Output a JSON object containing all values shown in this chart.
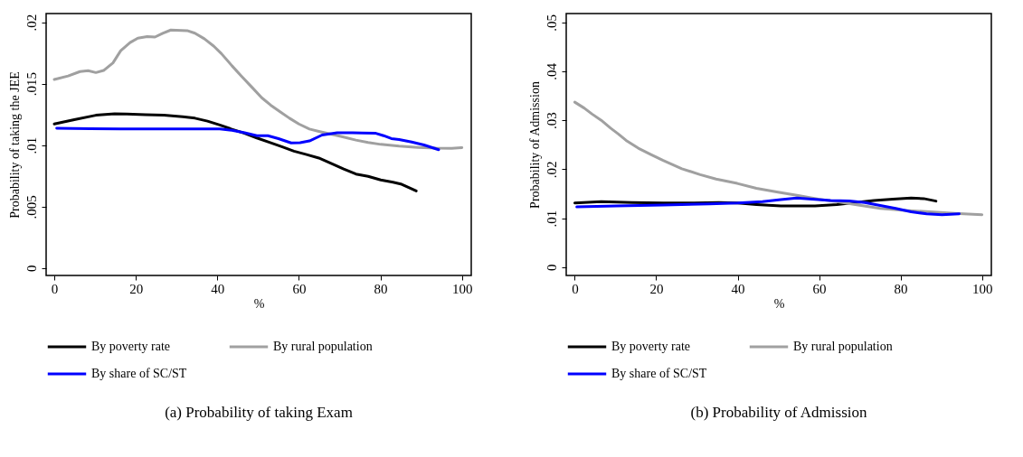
{
  "chart_data": [
    {
      "type": "line",
      "title": "(a) Probability of taking Exam",
      "xlabel": "%",
      "ylabel": "Probability of taking the JEE",
      "xlim": [
        -2,
        102.3
      ],
      "ylim": [
        -0.0006,
        0.0207
      ],
      "xticks": [
        0,
        20,
        40,
        60,
        80,
        100
      ],
      "yticks": [
        0,
        {
          "value": 0.005,
          "label": ".005"
        },
        {
          "value": 0.01,
          "label": ".01"
        },
        {
          "value": 0.015,
          "label": ".015"
        },
        {
          "value": 0.02,
          "label": ".02"
        }
      ],
      "legend": "bottom",
      "series": [
        {
          "name": "By poverty rate",
          "color": "#000000",
          "x": [
            0,
            4.9,
            10.2,
            14.8,
            17.8,
            22.4,
            26.9,
            31.5,
            34.5,
            37.6,
            40.6,
            43.6,
            46.7,
            49.7,
            52.8,
            55.8,
            58.8,
            61.9,
            64.9,
            67.9,
            71,
            74,
            77,
            80.1,
            83.1,
            85,
            88.8
          ],
          "values": [
            0.01172,
            0.01207,
            0.01243,
            0.01254,
            0.01252,
            0.01247,
            0.01243,
            0.01231,
            0.01219,
            0.01195,
            0.01164,
            0.01129,
            0.01096,
            0.01058,
            0.01022,
            0.00987,
            0.00951,
            0.00923,
            0.00895,
            0.00852,
            0.00805,
            0.00765,
            0.00746,
            0.00717,
            0.00698,
            0.00684,
            0.00627
          ]
        },
        {
          "name": "By rural population",
          "color": "#a0a0a0",
          "x": [
            0,
            3.4,
            6.3,
            8.3,
            10.2,
            12.1,
            14.4,
            16.3,
            18.6,
            20.5,
            22.8,
            24.7,
            26.6,
            28.6,
            32.6,
            34.5,
            36.8,
            39.1,
            41,
            43.6,
            45.9,
            48.6,
            50.9,
            53.1,
            55.4,
            57.7,
            60,
            62.6,
            64.9,
            67.9,
            71,
            74,
            77,
            80.1,
            84.6,
            89.2,
            93.7,
            97.5,
            100
          ],
          "values": [
            0.01534,
            0.01562,
            0.01598,
            0.01605,
            0.0159,
            0.01607,
            0.01669,
            0.01768,
            0.01834,
            0.0187,
            0.01882,
            0.01879,
            0.0191,
            0.01936,
            0.01931,
            0.0191,
            0.01865,
            0.01806,
            0.01744,
            0.01645,
            0.01562,
            0.01467,
            0.01385,
            0.01325,
            0.01271,
            0.01219,
            0.01172,
            0.01131,
            0.01112,
            0.01089,
            0.01065,
            0.01041,
            0.01022,
            0.01006,
            0.00992,
            0.00982,
            0.00975,
            0.00973,
            0.0098
          ]
        },
        {
          "name": "By share of SC/ST",
          "color": "#0000ff",
          "x": [
            0.6,
            8.7,
            16.3,
            23.9,
            31.5,
            40.6,
            43.6,
            46.7,
            49.7,
            52.4,
            55,
            58.1,
            60.3,
            62.6,
            65.7,
            69.4,
            73.2,
            75.5,
            78.9,
            80.8,
            82.7,
            84.6,
            87.7,
            90.7,
            94.3
          ],
          "values": [
            0.01138,
            0.01134,
            0.01131,
            0.01131,
            0.01131,
            0.01131,
            0.0112,
            0.01101,
            0.01077,
            0.01077,
            0.01053,
            0.01018,
            0.0102,
            0.01034,
            0.01082,
            0.01101,
            0.01101,
            0.01098,
            0.01096,
            0.01077,
            0.01053,
            0.01046,
            0.01025,
            0.01001,
            0.00963
          ]
        }
      ]
    },
    {
      "type": "line",
      "title": "(b) Probability of Admission",
      "xlabel": "%",
      "ylabel": "Probability of Admission",
      "xlim": [
        -2.1,
        102.3
      ],
      "ylim": [
        -0.0017,
        0.0518
      ],
      "xticks": [
        0,
        20,
        40,
        60,
        80,
        100
      ],
      "yticks": [
        0,
        {
          "value": 0.01,
          "label": ".01"
        },
        {
          "value": 0.02,
          "label": ".02"
        },
        {
          "value": 0.03,
          "label": ".03"
        },
        {
          "value": 0.04,
          "label": ".04"
        },
        {
          "value": 0.05,
          "label": ".05"
        }
      ],
      "legend": "bottom",
      "series": [
        {
          "name": "By poverty rate",
          "color": "#000000",
          "x": [
            0,
            6.5,
            14.1,
            21.7,
            29.3,
            35.4,
            40,
            44.6,
            50.6,
            59,
            64.4,
            68.9,
            73.5,
            78.1,
            82.6,
            85.7,
            88.7
          ],
          "values": [
            0.0131,
            0.0134,
            0.0132,
            0.0131,
            0.0131,
            0.0132,
            0.0131,
            0.0128,
            0.0125,
            0.0125,
            0.0128,
            0.0132,
            0.0136,
            0.0139,
            0.0141,
            0.014,
            0.0135
          ]
        },
        {
          "name": "By rural population",
          "color": "#a0a0a0",
          "x": [
            0,
            2.3,
            4.2,
            6.5,
            8.8,
            10.7,
            12.6,
            15.6,
            18.7,
            21.7,
            26.3,
            30.8,
            34.7,
            39.9,
            44.6,
            49.9,
            55.2,
            59.8,
            64.4,
            68.9,
            75,
            81.1,
            87.2,
            93.3,
            100
          ],
          "values": [
            0.0337,
            0.0325,
            0.0313,
            0.03,
            0.0284,
            0.0272,
            0.0259,
            0.0243,
            0.023,
            0.0218,
            0.0201,
            0.0189,
            0.018,
            0.0171,
            0.0161,
            0.0153,
            0.0146,
            0.0139,
            0.0134,
            0.0128,
            0.012,
            0.0116,
            0.0113,
            0.011,
            0.0107
          ]
        },
        {
          "name": "By share of SC/ST",
          "color": "#0000ff",
          "x": [
            0.5,
            10.3,
            21.7,
            33.1,
            40,
            46.1,
            50.6,
            54.5,
            58.3,
            62.8,
            67.4,
            71.2,
            75,
            78.8,
            82.6,
            86.4,
            90.2,
            94.4
          ],
          "values": [
            0.0123,
            0.0125,
            0.0127,
            0.0129,
            0.0131,
            0.0134,
            0.0138,
            0.0141,
            0.0139,
            0.0136,
            0.0135,
            0.0132,
            0.0126,
            0.012,
            0.0113,
            0.0109,
            0.0107,
            0.0109
          ]
        }
      ]
    }
  ]
}
